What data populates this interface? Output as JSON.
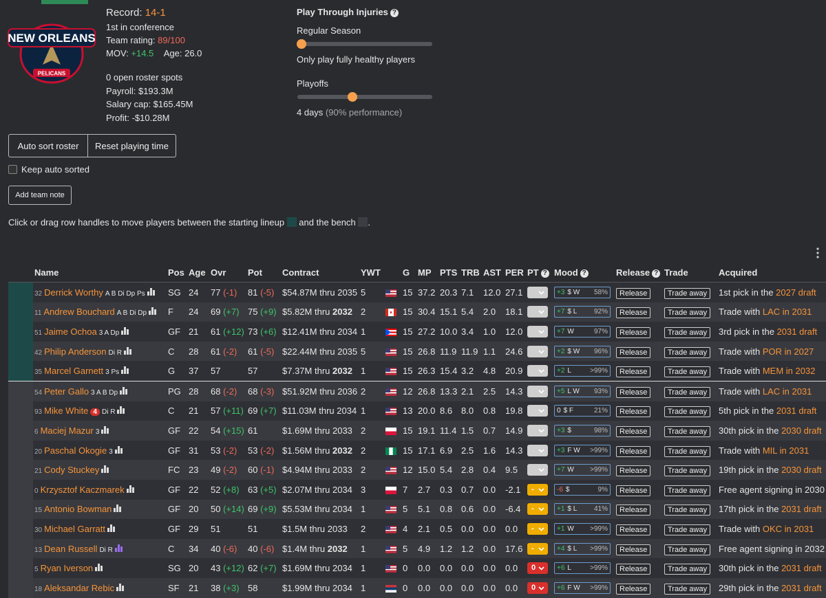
{
  "header": {
    "logo_top": "NEW ORLEANS",
    "logo_bottom": "PELICANS",
    "record_label": "Record:",
    "record": "14-1",
    "conference": "1st in conference",
    "rating_label": "Team rating:",
    "rating": "89/100",
    "mov_label": "MOV:",
    "mov": "+14.5",
    "age_label": "Age:",
    "age": "26.0",
    "roster_spots": "0 open roster spots",
    "payroll": "Payroll: $193.3M",
    "salary_cap": "Salary cap: $165.45M",
    "profit": "Profit: -$10.28M"
  },
  "injuries": {
    "title": "Play Through Injuries",
    "help": "?",
    "regular_label": "Regular Season",
    "regular_desc": "Only play fully healthy players",
    "playoffs_label": "Playoffs",
    "playoffs_desc": "4 days",
    "playoffs_perf": "(90% performance)"
  },
  "controls": {
    "auto_sort": "Auto sort roster",
    "reset_time": "Reset playing time",
    "keep_sorted": "Keep auto sorted",
    "add_note": "Add team note",
    "instruction_start": "Click or drag row handles to move players between the starting lineup",
    "instruction_mid": "and the bench",
    "instruction_end": "."
  },
  "table": {
    "columns": [
      "Name",
      "Pos",
      "Age",
      "Ovr",
      "Pot",
      "Contract",
      "YWT",
      "G",
      "MP",
      "PTS",
      "TRB",
      "AST",
      "PER",
      {
        "label": "PT",
        "help": "?"
      },
      {
        "label": "Mood",
        "help": "?"
      },
      {
        "label": "Release",
        "help": "?"
      },
      "Trade",
      "Acquired"
    ],
    "release_button": "Release",
    "trade_button": "Trade away",
    "starters": [
      {
        "num": "32",
        "name": "Derrick Worthy",
        "skills": "A B Di Dp Ps",
        "pos": "SG",
        "age": "24",
        "ovr": "77",
        "ovr_change": "(-1)",
        "pot": "81",
        "pot_change": "(-5)",
        "contract": "$54.87M thru 2035",
        "ywt": "5",
        "flag": "us",
        "stats": [
          "15",
          "37.2",
          "20.3",
          "7.1",
          "12.0",
          "27.1"
        ],
        "mood_delta": "+3",
        "mood_traits": "$ W",
        "mood_pct": "58%",
        "acquired": "1st pick in the",
        "acquired_link": "2027 draft"
      },
      {
        "num": "11",
        "name": "Andrew Bouchard",
        "skills": "A B Di Dp",
        "pos": "F",
        "age": "24",
        "ovr": "69",
        "ovr_change": "(+7)",
        "pot": "75",
        "pot_change": "(+9)",
        "contract": "$5.82M thru",
        "contract_year": "2032",
        "ywt": "2",
        "flag": "ca",
        "stats": [
          "15",
          "30.4",
          "15.1",
          "5.4",
          "2.0",
          "18.1"
        ],
        "mood_delta": "+7",
        "mood_traits": "$ L",
        "mood_pct": "92%",
        "acquired": "Trade with",
        "acquired_link": "LAC in 2031"
      },
      {
        "num": "51",
        "name": "Jaime Ochoa",
        "skills": "3 A Dp",
        "pos": "GF",
        "age": "21",
        "ovr": "61",
        "ovr_change": "(+12)",
        "pot": "73",
        "pot_change": "(+6)",
        "contract": "$12.41M thru 2034",
        "ywt": "1",
        "flag": "pr",
        "stats": [
          "15",
          "27.2",
          "10.0",
          "3.4",
          "1.0",
          "12.0"
        ],
        "mood_delta": "+7",
        "mood_traits": "W",
        "mood_pct": "97%",
        "acquired": "3rd pick in the",
        "acquired_link": "2031 draft"
      },
      {
        "num": "42",
        "name": "Philip Anderson",
        "skills": "Di R",
        "pos": "C",
        "age": "28",
        "ovr": "61",
        "ovr_change": "(-2)",
        "pot": "61",
        "pot_change": "(-5)",
        "contract": "$22.44M thru 2035",
        "ywt": "5",
        "flag": "us",
        "stats": [
          "15",
          "26.8",
          "11.9",
          "11.9",
          "1.1",
          "24.6"
        ],
        "mood_delta": "+2",
        "mood_traits": "$ W",
        "mood_pct": "96%",
        "acquired": "Trade with",
        "acquired_link": "POR in 2027"
      },
      {
        "num": "35",
        "name": "Marcel Garnett",
        "skills": "3 Ps",
        "pos": "G",
        "age": "37",
        "ovr": "57",
        "pot": "57",
        "contract": "$7.37M thru",
        "contract_year": "2032",
        "ywt": "1",
        "flag": "us",
        "stats": [
          "15",
          "26.3",
          "15.4",
          "3.2",
          "4.8",
          "20.9"
        ],
        "mood_delta": "+2",
        "mood_traits": "L",
        "mood_pct": ">99%",
        "acquired": "Trade with",
        "acquired_link": "MEM in 2032"
      }
    ],
    "bench": [
      {
        "num": "54",
        "name": "Peter Gallo",
        "skills": "3 A B Dp",
        "pos": "PG",
        "age": "28",
        "ovr": "68",
        "ovr_change": "(-2)",
        "pot": "68",
        "pot_change": "(-3)",
        "contract": "$51.92M thru 2036",
        "ywt": "2",
        "flag": "us",
        "stats": [
          "12",
          "26.8",
          "13.3",
          "2.1",
          "2.5",
          "14.3"
        ],
        "mood_delta": "+5",
        "mood_traits": "L W",
        "mood_pct": "93%",
        "acquired": "Trade with",
        "acquired_link": "LAC in 2031"
      },
      {
        "num": "93",
        "name": "Mike White",
        "injury": "4",
        "skills": "Di R",
        "pos": "C",
        "age": "21",
        "ovr": "57",
        "ovr_change": "(+11)",
        "pot": "69",
        "pot_change": "(+7)",
        "contract": "$11.03M thru 2034",
        "ywt": "1",
        "flag": "us",
        "stats": [
          "13",
          "20.0",
          "8.6",
          "8.0",
          "0.8",
          "19.8"
        ],
        "mood_delta": "0",
        "mood_traits": "$ F",
        "mood_pct": "21%",
        "acquired": "5th pick in the",
        "acquired_link": "2031 draft"
      },
      {
        "num": "6",
        "name": "Maciej Mazur",
        "skills": "3",
        "pos": "GF",
        "age": "22",
        "ovr": "54",
        "ovr_change": "(+15)",
        "pot": "61",
        "contract": "$1.69M thru 2033",
        "ywt": "2",
        "flag": "pl",
        "stats": [
          "15",
          "19.1",
          "11.4",
          "1.5",
          "0.7",
          "14.9"
        ],
        "mood_delta": "+3",
        "mood_traits": "$",
        "mood_pct": "98%",
        "acquired": "30th pick in the",
        "acquired_link": "2030 draft"
      },
      {
        "num": "20",
        "name": "Paschal Okogie",
        "skills": "3",
        "pos": "GF",
        "age": "31",
        "ovr": "53",
        "ovr_change": "(-2)",
        "pot": "53",
        "pot_change": "(-2)",
        "contract": "$1.56M thru",
        "contract_year": "2032",
        "ywt": "2",
        "flag": "ng",
        "stats": [
          "15",
          "17.1",
          "6.9",
          "2.5",
          "1.6",
          "14.3"
        ],
        "mood_delta": "+3",
        "mood_traits": "F W",
        "mood_pct": ">99%",
        "acquired": "Trade with",
        "acquired_link": "MIL in 2031"
      },
      {
        "num": "21",
        "name": "Cody Stuckey",
        "pos": "FC",
        "age": "23",
        "ovr": "49",
        "ovr_change": "(-2)",
        "pot": "60",
        "pot_change": "(-1)",
        "contract": "$4.94M thru 2033",
        "ywt": "2",
        "flag": "us",
        "stats": [
          "12",
          "15.0",
          "5.4",
          "2.8",
          "0.4",
          "9.5"
        ],
        "mood_delta": "+7",
        "mood_traits": "W",
        "mood_pct": ">99%",
        "acquired": "19th pick in the",
        "acquired_link": "2030 draft"
      },
      {
        "num": "0",
        "name": "Krzysztof Kaczmarek",
        "pos": "GF",
        "age": "22",
        "ovr": "52",
        "ovr_change": "(+8)",
        "pot": "63",
        "pot_change": "(+5)",
        "contract": "$2.07M thru 2034",
        "ywt": "3",
        "flag": "pl",
        "stats": [
          "7",
          "2.7",
          "0.3",
          "0.7",
          "0.0",
          "-2.1"
        ],
        "pt": "-",
        "pt_color": "#f0ad00",
        "mood_delta": "-6",
        "mood_traits": "$",
        "mood_pct": "9%",
        "acquired": "Free agent signing in 2030"
      },
      {
        "num": "15",
        "name": "Antonio Bowman",
        "pos": "GF",
        "age": "20",
        "ovr": "50",
        "ovr_change": "(+14)",
        "pot": "69",
        "pot_change": "(+9)",
        "contract": "$5.53M thru 2034",
        "ywt": "1",
        "flag": "us",
        "stats": [
          "5",
          "5.1",
          "0.8",
          "0.6",
          "0.0",
          "-6.4"
        ],
        "pt": "-",
        "pt_color": "#f0ad00",
        "mood_delta": "+1",
        "mood_traits": "$ L",
        "mood_pct": "41%",
        "acquired": "17th pick in the",
        "acquired_link": "2031 draft"
      },
      {
        "num": "30",
        "name": "Michael Garratt",
        "pos": "GF",
        "age": "29",
        "ovr": "51",
        "pot": "51",
        "contract": "$1.5M thru 2033",
        "ywt": "2",
        "flag": "us",
        "stats": [
          "4",
          "2.1",
          "0.5",
          "0.0",
          "0.0",
          "0.0"
        ],
        "pt": "-",
        "pt_color": "#f0ad00",
        "mood_delta": "+1",
        "mood_traits": "W",
        "mood_pct": ">99%",
        "acquired": "Trade with",
        "acquired_link": "OKC in 2031"
      },
      {
        "num": "13",
        "name": "Dean Russell",
        "skills": "Di R",
        "bars_color": "#9a6cf0",
        "pos": "C",
        "age": "34",
        "ovr": "40",
        "ovr_change": "(-6)",
        "pot": "40",
        "pot_change": "(-6)",
        "contract": "$1.4M thru",
        "contract_year": "2032",
        "ywt": "1",
        "flag": "us",
        "stats": [
          "5",
          "4.9",
          "1.2",
          "1.2",
          "0.0",
          "17.6"
        ],
        "pt": "-",
        "pt_color": "#f0ad00",
        "mood_delta": "+4",
        "mood_traits": "$ L",
        "mood_pct": ">99%",
        "acquired": "Free agent signing in 2032"
      },
      {
        "num": "5",
        "name": "Ryan Iverson",
        "pos": "SG",
        "age": "20",
        "ovr": "43",
        "ovr_change": "(+12)",
        "pot": "62",
        "pot_change": "(+7)",
        "contract": "$1.69M thru 2034",
        "ywt": "1",
        "flag": "us",
        "stats": [
          "0",
          "0.0",
          "0.0",
          "0.0",
          "0.0",
          "0.0"
        ],
        "pt": "0",
        "pt_color": "#d9302c",
        "mood_delta": "+6",
        "mood_traits": "L",
        "mood_pct": ">99%",
        "acquired": "30th pick in the",
        "acquired_link": "2031 draft"
      },
      {
        "num": "18",
        "name": "Aleksandar Rebic",
        "pos": "SF",
        "age": "21",
        "ovr": "38",
        "ovr_change": "(+3)",
        "pot": "58",
        "contract": "$1.99M thru 2034",
        "ywt": "1",
        "flag": "rs",
        "stats": [
          "0",
          "0.0",
          "0.0",
          "0.0",
          "0.0",
          "0.0"
        ],
        "pt": "0",
        "pt_color": "#d9302c",
        "mood_delta": "+6",
        "mood_traits": "F W",
        "mood_pct": ">99%",
        "acquired": "29th pick in the",
        "acquired_link": "2031 draft"
      }
    ]
  }
}
